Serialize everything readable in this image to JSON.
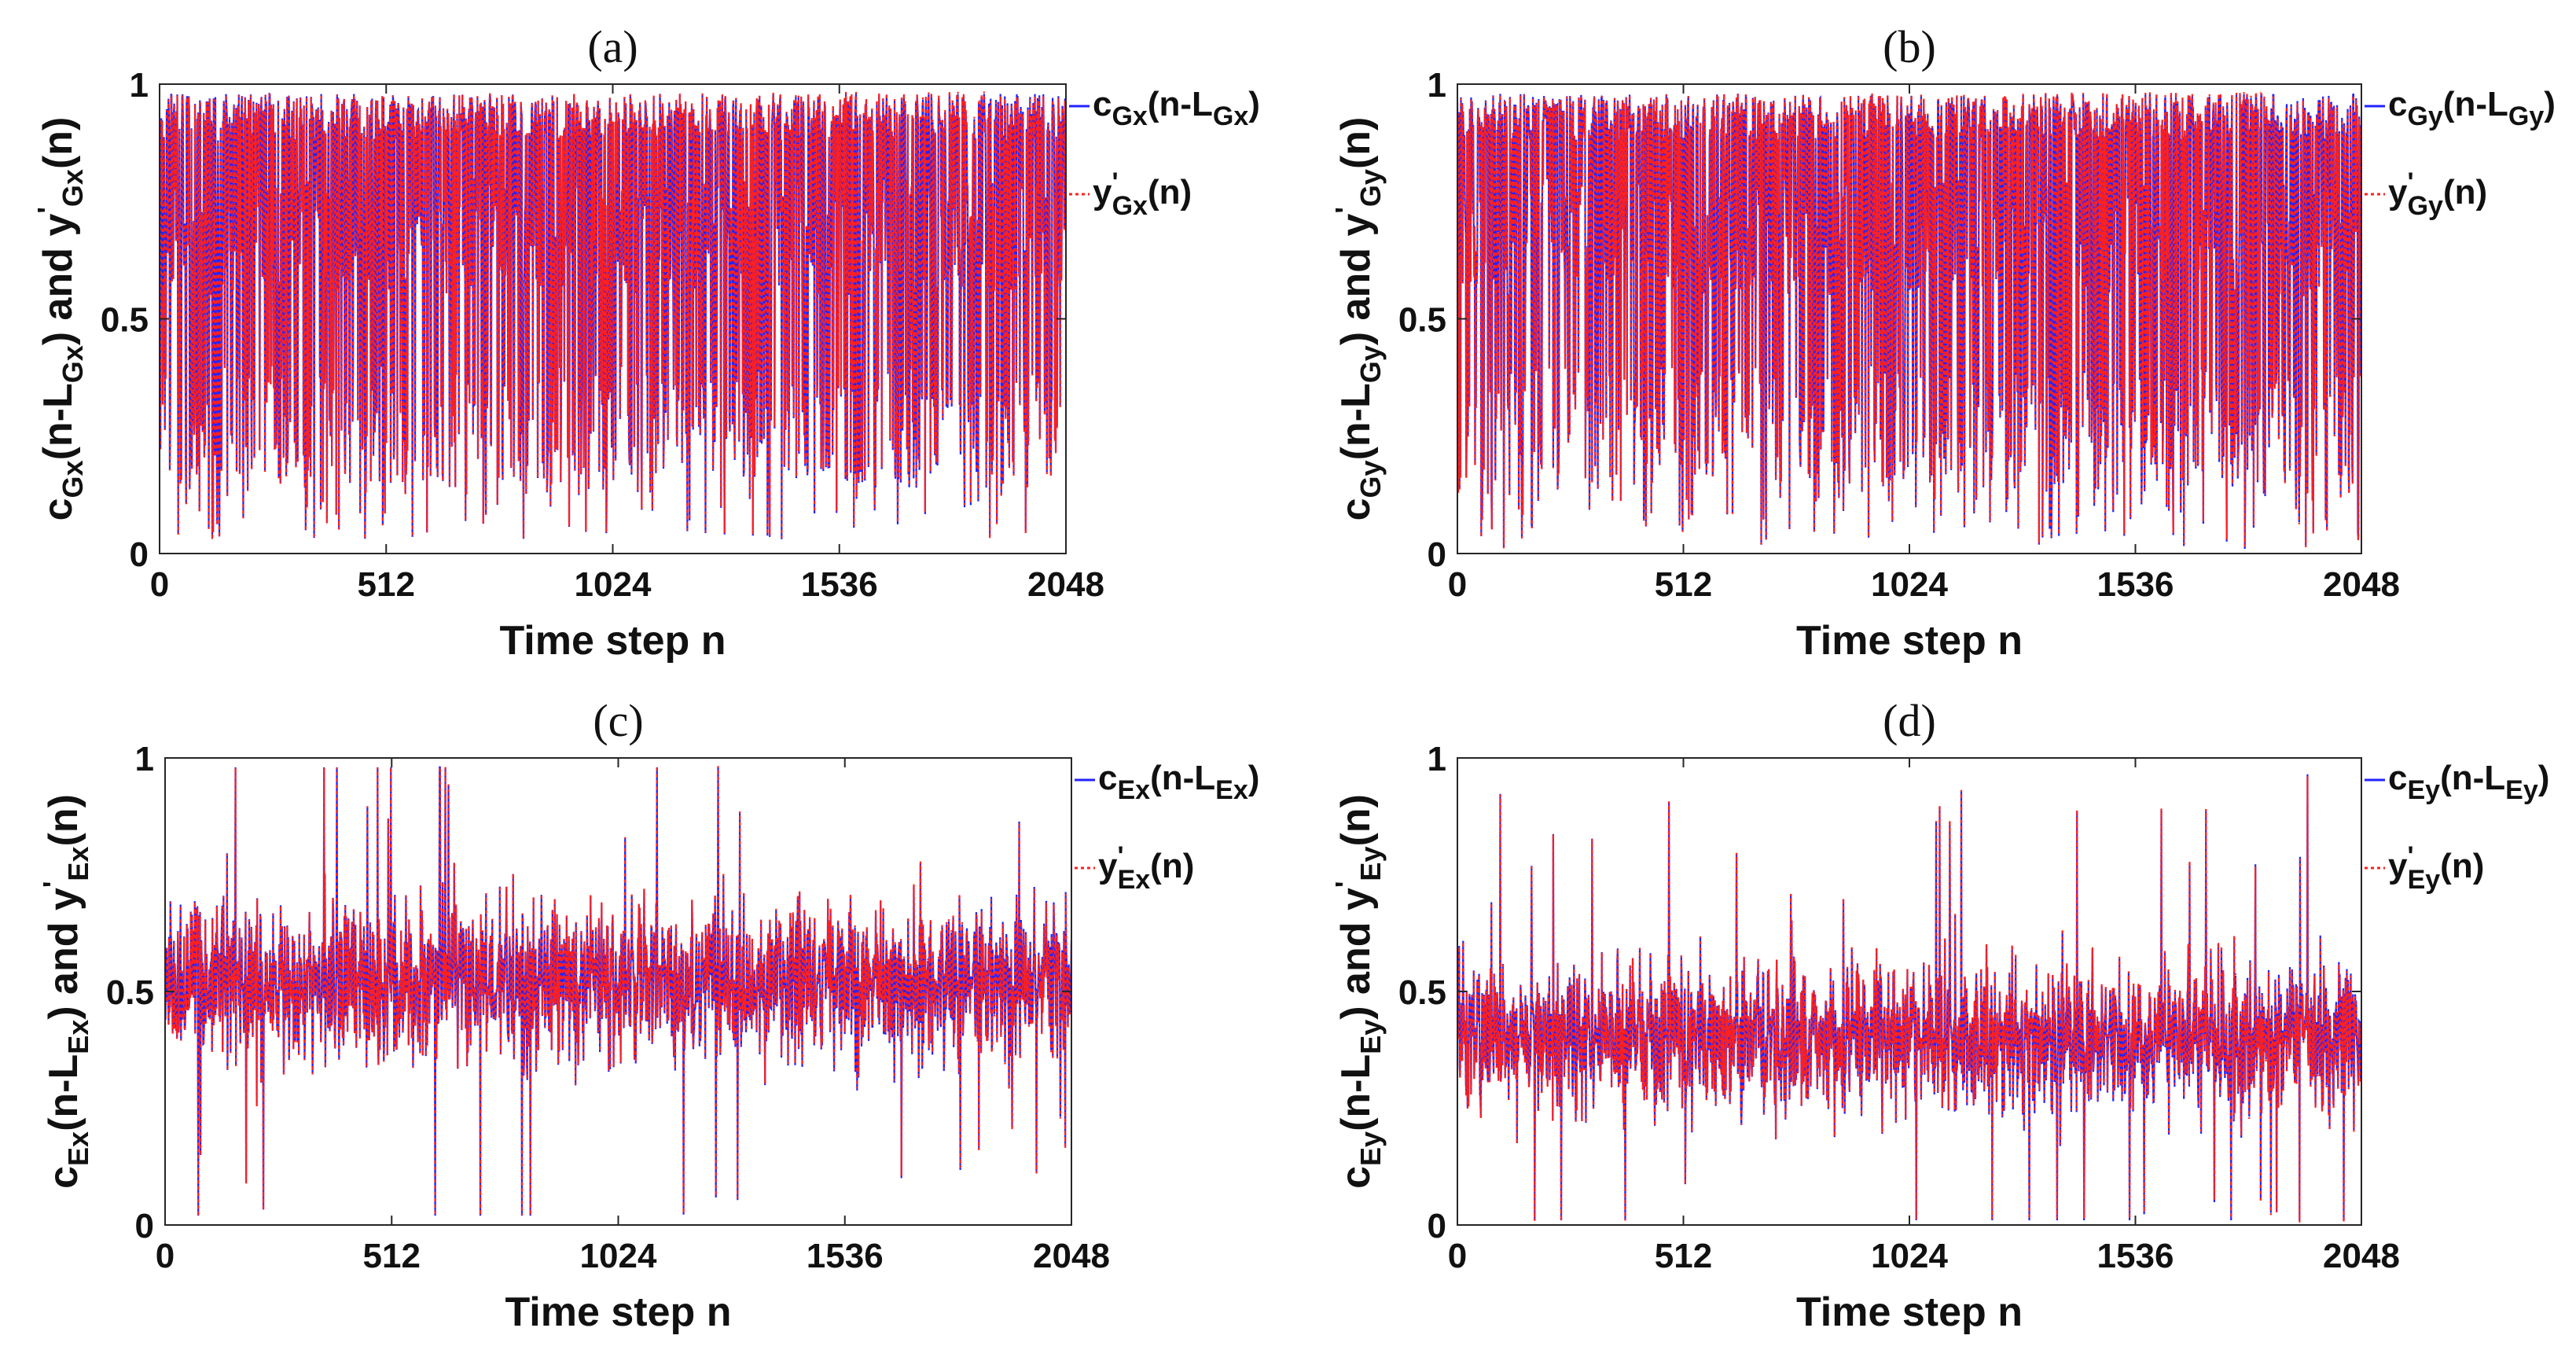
{
  "figure": {
    "colors": {
      "series1": "#2323ff",
      "series2": "#ff2020",
      "axes": "#262626",
      "text": "#111111"
    }
  },
  "chart_data": [
    {
      "id": "a",
      "type": "line",
      "panel_label": "(a)",
      "title": "(a)",
      "ylabel": {
        "c": "c",
        "c_sub": "Gx",
        "open": "(n-L",
        "l_sub": "Gx",
        "and": ") and y",
        "y_sup": "'",
        "y_sub": "Gx",
        "tail": "(n)"
      },
      "xlabel": "Time step n",
      "xlim": [
        0,
        2048
      ],
      "ylim": [
        0,
        1
      ],
      "xticks": [
        0,
        512,
        1024,
        1536,
        2048
      ],
      "xtick_labels": [
        "0",
        "512",
        "1024",
        "1536",
        "2048"
      ],
      "yticks": [
        0,
        0.5,
        1
      ],
      "ytick_labels": [
        "0",
        "0.5",
        "1"
      ],
      "n_points": 2048,
      "signal": {
        "mean": 0.62,
        "spread": 0.36,
        "min": 0.03,
        "max": 0.99,
        "style": "bimodal-high"
      },
      "legend_position": "top-right-outside",
      "legend": [
        {
          "main": "c",
          "sub": "Gx",
          "rest": "(n-L",
          "sub2": "Gx",
          "end": ")",
          "line": "solid"
        },
        {
          "main": "y",
          "sup": "'",
          "sub": "Gx",
          "end": "(n)",
          "line": "dotted"
        }
      ],
      "series": [
        {
          "name": "c_Gx(n-L_Gx)",
          "style": "solid",
          "color": "#2323ff"
        },
        {
          "name": "y'_Gx(n)",
          "style": "dotted",
          "color": "#ff2020"
        }
      ]
    },
    {
      "id": "b",
      "type": "line",
      "panel_label": "(b)",
      "title": "(b)",
      "ylabel": {
        "c": "c",
        "c_sub": "Gy",
        "open": "(n-L",
        "l_sub": "Gy",
        "and": ") and y",
        "y_sup": "'",
        "y_sub": "Gy",
        "tail": "(n)"
      },
      "xlabel": "Time step n",
      "xlim": [
        0,
        2048
      ],
      "ylim": [
        0,
        1
      ],
      "xticks": [
        0,
        512,
        1024,
        1536,
        2048
      ],
      "xtick_labels": [
        "0",
        "512",
        "1024",
        "1536",
        "2048"
      ],
      "yticks": [
        0,
        0.5,
        1
      ],
      "ytick_labels": [
        "0",
        "0.5",
        "1"
      ],
      "n_points": 2048,
      "signal": {
        "mean": 0.62,
        "spread": 0.36,
        "min": 0.01,
        "max": 0.99,
        "style": "bimodal-high"
      },
      "legend_position": "top-right-outside",
      "legend": [
        {
          "main": "c",
          "sub": "Gy",
          "rest": "(n-L",
          "sub2": "Gy",
          "end": ")",
          "line": "solid"
        },
        {
          "main": "y",
          "sup": "'",
          "sub": "Gy",
          "end": "(n)",
          "line": "dotted"
        }
      ],
      "series": [
        {
          "name": "c_Gy(n-L_Gy)",
          "style": "solid",
          "color": "#2323ff"
        },
        {
          "name": "y'_Gy(n)",
          "style": "dotted",
          "color": "#ff2020"
        }
      ]
    },
    {
      "id": "c",
      "type": "line",
      "panel_label": "(c)",
      "title": "(c)",
      "ylabel": {
        "c": "c",
        "c_sub": "Ex",
        "open": "(n-L",
        "l_sub": "Ex",
        "and": ") and y",
        "y_sup": "'",
        "y_sub": "Ex",
        "tail": "(n)"
      },
      "xlabel": "Time step n",
      "xlim": [
        0,
        2048
      ],
      "ylim": [
        0,
        1
      ],
      "xticks": [
        0,
        512,
        1024,
        1536,
        2048
      ],
      "xtick_labels": [
        "0",
        "512",
        "1024",
        "1536",
        "2048"
      ],
      "yticks": [
        0,
        0.5,
        1
      ],
      "ytick_labels": [
        "0",
        "0.5",
        "1"
      ],
      "n_points": 2048,
      "signal": {
        "mean": 0.52,
        "spread": 0.16,
        "min": 0.02,
        "max": 0.98,
        "style": "centered"
      },
      "legend_position": "top-right-outside",
      "legend": [
        {
          "main": "c",
          "sub": "Ex",
          "rest": "(n-L",
          "sub2": "Ex",
          "end": ")",
          "line": "solid"
        },
        {
          "main": "y",
          "sup": "'",
          "sub": "Ex",
          "end": "(n)",
          "line": "dotted"
        }
      ],
      "series": [
        {
          "name": "c_Ex(n-L_Ex)",
          "style": "solid",
          "color": "#2323ff"
        },
        {
          "name": "y'_Ex(n)",
          "style": "dotted",
          "color": "#ff2020"
        }
      ]
    },
    {
      "id": "d",
      "type": "line",
      "panel_label": "(d)",
      "title": "(d)",
      "ylabel": {
        "c": "c",
        "c_sub": "Ey",
        "open": "(n-L",
        "l_sub": "Ey",
        "and": ") and y",
        "y_sup": "'",
        "y_sub": "Ey",
        "tail": "(n)"
      },
      "xlabel": "Time step n",
      "xlim": [
        0,
        2048
      ],
      "ylim": [
        0,
        1
      ],
      "xticks": [
        0,
        512,
        1024,
        1536,
        2048
      ],
      "xtick_labels": [
        "0",
        "512",
        "1024",
        "1536",
        "2048"
      ],
      "yticks": [
        0,
        0.5,
        1
      ],
      "ytick_labels": [
        "0",
        "0.5",
        "1"
      ],
      "n_points": 2048,
      "signal": {
        "mean": 0.4,
        "spread": 0.15,
        "min": 0.01,
        "max": 1.0,
        "style": "centered"
      },
      "legend_position": "top-right-outside",
      "legend": [
        {
          "main": "c",
          "sub": "Ey",
          "rest": "(n-L",
          "sub2": "Ey",
          "end": ")",
          "line": "solid"
        },
        {
          "main": "y",
          "sup": "'",
          "sub": "Ey",
          "end": "(n)",
          "line": "dotted"
        }
      ],
      "series": [
        {
          "name": "c_Ey(n-L_Ey)",
          "style": "solid",
          "color": "#2323ff"
        },
        {
          "name": "y'_Ey(n)",
          "style": "dotted",
          "color": "#ff2020"
        }
      ]
    }
  ]
}
